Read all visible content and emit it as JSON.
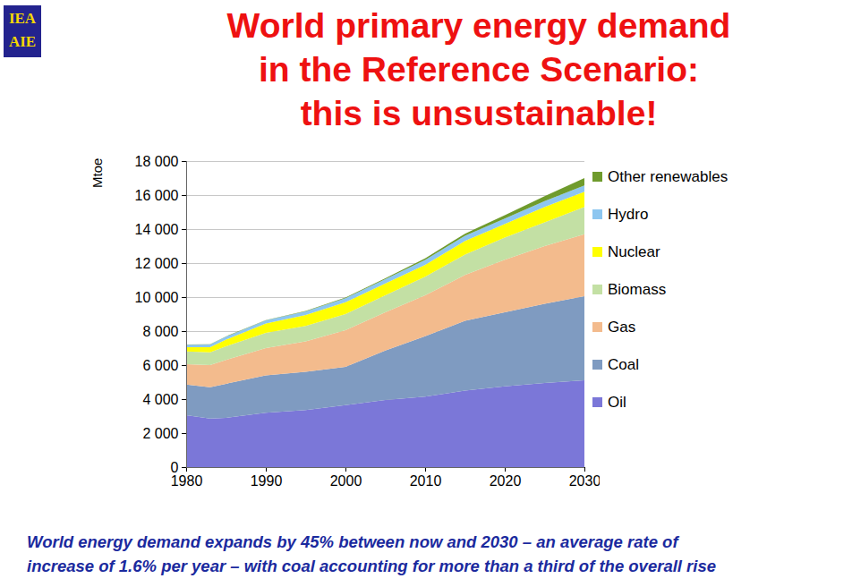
{
  "chart_data": {
    "type": "area",
    "stacked": true,
    "logo": [
      "IEA",
      "AIE"
    ],
    "title": [
      "World primary energy demand",
      "in the Reference Scenario:",
      "this is unsustainable!"
    ],
    "caption": [
      "World energy demand expands by 45% between now and 2030 – an average rate of",
      "increase of 1.6% per year – with coal accounting for more than a third of the overall rise"
    ],
    "y_label": "Mtoe",
    "x": [
      1980,
      1983,
      1985,
      1990,
      1995,
      2000,
      2005,
      2010,
      2015,
      2020,
      2025,
      2030
    ],
    "series": [
      {
        "name": "Oil",
        "color": "#7b77d8",
        "values": [
          3050,
          2850,
          2900,
          3200,
          3350,
          3650,
          3950,
          4150,
          4500,
          4750,
          4950,
          5100
        ]
      },
      {
        "name": "Coal",
        "color": "#7f9bc1",
        "values": [
          1800,
          1850,
          2000,
          2200,
          2250,
          2250,
          2900,
          3550,
          4100,
          4350,
          4650,
          4950
        ]
      },
      {
        "name": "Gas",
        "color": "#f3bb8d",
        "values": [
          1200,
          1300,
          1400,
          1600,
          1800,
          2150,
          2250,
          2400,
          2700,
          3100,
          3400,
          3650
        ]
      },
      {
        "name": "Biomass",
        "color": "#c3e0a4",
        "values": [
          750,
          750,
          800,
          900,
          900,
          950,
          1000,
          1100,
          1200,
          1300,
          1400,
          1600
        ]
      },
      {
        "name": "Nuclear",
        "color": "#ffff00",
        "values": [
          250,
          300,
          400,
          550,
          650,
          700,
          700,
          700,
          800,
          800,
          900,
          900
        ]
      },
      {
        "name": "Hydro",
        "color": "#8dc6f0",
        "values": [
          150,
          160,
          170,
          180,
          210,
          230,
          250,
          280,
          300,
          320,
          340,
          370
        ]
      },
      {
        "name": "Other renewables",
        "color": "#6f9b2d",
        "values": [
          10,
          10,
          15,
          20,
          30,
          40,
          60,
          90,
          130,
          200,
          300,
          430
        ]
      }
    ],
    "xlim": [
      1980,
      2030
    ],
    "xticks": [
      1980,
      1990,
      2000,
      2010,
      2020,
      2030
    ],
    "ylim": [
      0,
      18000
    ],
    "yticks": [
      0,
      {
        "value": 2000,
        "label": "2 000"
      },
      {
        "value": 4000,
        "label": "4 000"
      },
      {
        "value": 6000,
        "label": "6 000"
      },
      {
        "value": 8000,
        "label": "8 000"
      },
      {
        "value": 10000,
        "label": "10 000"
      },
      {
        "value": 12000,
        "label": "12 000"
      },
      {
        "value": 14000,
        "label": "14 000"
      },
      {
        "value": 16000,
        "label": "16 000"
      },
      {
        "value": 18000,
        "label": "18 000"
      }
    ],
    "grid": true,
    "legend": "right"
  }
}
